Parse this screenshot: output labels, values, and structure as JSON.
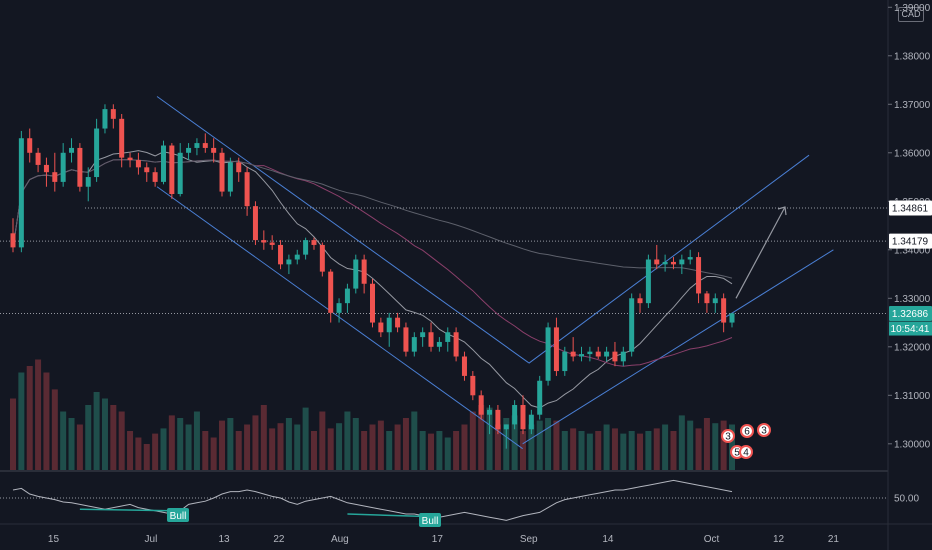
{
  "currency_label": "CAD",
  "chart_data": {
    "type": "candlestick",
    "y_axis": {
      "ticks": [
        "1.39000",
        "1.38000",
        "1.37000",
        "1.36000",
        "1.35000",
        "1.34000",
        "1.33000",
        "1.32000",
        "1.31000",
        "1.30000"
      ],
      "tick_values": [
        1.39,
        1.38,
        1.37,
        1.36,
        1.35,
        1.34,
        1.33,
        1.32,
        1.31,
        1.3
      ],
      "range": [
        1.2946,
        1.3915
      ]
    },
    "x_axis": {
      "ticks": [
        "15",
        "Jul",
        "13",
        "22",
        "Aug",
        "17",
        "Sep",
        "14",
        "Oct",
        "12",
        "21"
      ],
      "tick_positions_date": [
        "2020-06-15",
        "2020-07-01",
        "2020-07-13",
        "2020-07-22",
        "2020-08-01",
        "2020-08-17",
        "2020-09-01",
        "2020-09-14",
        "2020-10-01",
        "2020-10-12",
        "2020-10-21"
      ]
    },
    "price_labels": {
      "level_1": {
        "value": "1.34861",
        "color": "#ffffff"
      },
      "level_2": {
        "value": "1.34179",
        "color": "#ffffff"
      },
      "last_price": {
        "value": "1.32686",
        "color": "#26a69a"
      },
      "countdown": "10:54:41"
    },
    "horizontal_levels": [
      1.34861,
      1.34179,
      1.32686
    ],
    "candles": [
      [
        1.3434,
        1.3465,
        1.3395,
        1.3405
      ],
      [
        1.3405,
        1.3645,
        1.3395,
        1.363
      ],
      [
        1.363,
        1.365,
        1.358,
        1.36
      ],
      [
        1.36,
        1.361,
        1.356,
        1.3575
      ],
      [
        1.3575,
        1.359,
        1.353,
        1.356
      ],
      [
        1.356,
        1.36,
        1.352,
        1.354
      ],
      [
        1.354,
        1.362,
        1.353,
        1.36
      ],
      [
        1.36,
        1.363,
        1.358,
        1.361
      ],
      [
        1.361,
        1.362,
        1.352,
        1.353
      ],
      [
        1.353,
        1.357,
        1.35,
        1.355
      ],
      [
        1.355,
        1.367,
        1.354,
        1.365
      ],
      [
        1.365,
        1.37,
        1.364,
        1.369
      ],
      [
        1.369,
        1.37,
        1.365,
        1.367
      ],
      [
        1.367,
        1.368,
        1.357,
        1.359
      ],
      [
        1.359,
        1.36,
        1.357,
        1.3585
      ],
      [
        1.3585,
        1.36,
        1.3555,
        1.357
      ],
      [
        1.357,
        1.358,
        1.354,
        1.356
      ],
      [
        1.356,
        1.357,
        1.353,
        1.354
      ],
      [
        1.354,
        1.3625,
        1.3535,
        1.3615
      ],
      [
        1.3615,
        1.362,
        1.3505,
        1.3515
      ],
      [
        1.3515,
        1.362,
        1.351,
        1.36
      ],
      [
        1.36,
        1.362,
        1.3585,
        1.361
      ],
      [
        1.361,
        1.363,
        1.3595,
        1.362
      ],
      [
        1.362,
        1.364,
        1.36,
        1.361
      ],
      [
        1.361,
        1.363,
        1.358,
        1.36
      ],
      [
        1.36,
        1.361,
        1.351,
        1.352
      ],
      [
        1.352,
        1.359,
        1.351,
        1.358
      ],
      [
        1.358,
        1.359,
        1.354,
        1.356
      ],
      [
        1.356,
        1.357,
        1.347,
        1.349
      ],
      [
        1.349,
        1.35,
        1.341,
        1.342
      ],
      [
        1.342,
        1.344,
        1.34,
        1.3415
      ],
      [
        1.3415,
        1.343,
        1.34,
        1.341
      ],
      [
        1.341,
        1.342,
        1.336,
        1.337
      ],
      [
        1.337,
        1.339,
        1.335,
        1.338
      ],
      [
        1.338,
        1.34,
        1.337,
        1.339
      ],
      [
        1.339,
        1.3425,
        1.338,
        1.342
      ],
      [
        1.342,
        1.3425,
        1.34,
        1.341
      ],
      [
        1.341,
        1.3415,
        1.3345,
        1.3355
      ],
      [
        1.3355,
        1.336,
        1.325,
        1.327
      ],
      [
        1.327,
        1.33,
        1.325,
        1.329
      ],
      [
        1.329,
        1.333,
        1.327,
        1.332
      ],
      [
        1.332,
        1.339,
        1.331,
        1.338
      ],
      [
        1.338,
        1.339,
        1.331,
        1.333
      ],
      [
        1.333,
        1.334,
        1.324,
        1.325
      ],
      [
        1.325,
        1.326,
        1.322,
        1.323
      ],
      [
        1.323,
        1.327,
        1.32,
        1.326
      ],
      [
        1.326,
        1.327,
        1.323,
        1.324
      ],
      [
        1.324,
        1.325,
        1.318,
        1.319
      ],
      [
        1.319,
        1.323,
        1.318,
        1.322
      ],
      [
        1.322,
        1.324,
        1.32,
        1.323
      ],
      [
        1.323,
        1.325,
        1.319,
        1.32
      ],
      [
        1.32,
        1.322,
        1.319,
        1.321
      ],
      [
        1.321,
        1.324,
        1.319,
        1.323
      ],
      [
        1.323,
        1.324,
        1.317,
        1.318
      ],
      [
        1.318,
        1.319,
        1.313,
        1.314
      ],
      [
        1.314,
        1.315,
        1.309,
        1.31
      ],
      [
        1.31,
        1.311,
        1.305,
        1.306
      ],
      [
        1.306,
        1.308,
        1.302,
        1.307
      ],
      [
        1.307,
        1.308,
        1.302,
        1.303
      ],
      [
        1.303,
        1.304,
        1.299,
        1.304
      ],
      [
        1.304,
        1.309,
        1.303,
        1.308
      ],
      [
        1.308,
        1.31,
        1.302,
        1.303
      ],
      [
        1.303,
        1.307,
        1.302,
        1.306
      ],
      [
        1.306,
        1.314,
        1.305,
        1.313
      ],
      [
        1.313,
        1.325,
        1.312,
        1.324
      ],
      [
        1.324,
        1.326,
        1.314,
        1.315
      ],
      [
        1.315,
        1.32,
        1.314,
        1.319
      ],
      [
        1.319,
        1.322,
        1.317,
        1.318
      ],
      [
        1.318,
        1.32,
        1.317,
        1.3185
      ],
      [
        1.3185,
        1.32,
        1.317,
        1.319
      ],
      [
        1.319,
        1.32,
        1.3175,
        1.318
      ],
      [
        1.318,
        1.32,
        1.317,
        1.319
      ],
      [
        1.319,
        1.321,
        1.316,
        1.317
      ],
      [
        1.317,
        1.32,
        1.316,
        1.319
      ],
      [
        1.319,
        1.331,
        1.318,
        1.33
      ],
      [
        1.33,
        1.331,
        1.327,
        1.329
      ],
      [
        1.329,
        1.339,
        1.328,
        1.338
      ],
      [
        1.338,
        1.341,
        1.336,
        1.337
      ],
      [
        1.337,
        1.339,
        1.3355,
        1.3375
      ],
      [
        1.3375,
        1.3385,
        1.336,
        1.337
      ],
      [
        1.337,
        1.339,
        1.335,
        1.338
      ],
      [
        1.338,
        1.34,
        1.337,
        1.3385
      ],
      [
        1.3385,
        1.3395,
        1.329,
        1.331
      ],
      [
        1.331,
        1.3315,
        1.327,
        1.329
      ],
      [
        1.329,
        1.331,
        1.327,
        1.33
      ],
      [
        1.33,
        1.331,
        1.323,
        1.325
      ],
      [
        1.325,
        1.327,
        1.324,
        1.3269
      ]
    ],
    "volume_rel": [
      0.55,
      0.75,
      0.8,
      0.85,
      0.75,
      0.62,
      0.45,
      0.4,
      0.35,
      0.5,
      0.6,
      0.55,
      0.5,
      0.45,
      0.3,
      0.25,
      0.2,
      0.28,
      0.32,
      0.42,
      0.4,
      0.35,
      0.45,
      0.3,
      0.25,
      0.38,
      0.4,
      0.3,
      0.35,
      0.42,
      0.5,
      0.32,
      0.36,
      0.4,
      0.35,
      0.48,
      0.3,
      0.45,
      0.32,
      0.36,
      0.45,
      0.4,
      0.3,
      0.35,
      0.38,
      0.3,
      0.35,
      0.4,
      0.45,
      0.3,
      0.28,
      0.3,
      0.25,
      0.3,
      0.35,
      0.45,
      0.5,
      0.48,
      0.35,
      0.4,
      0.42,
      0.3,
      0.35,
      0.38,
      0.4,
      0.38,
      0.3,
      0.32,
      0.3,
      0.28,
      0.3,
      0.35,
      0.32,
      0.28,
      0.3,
      0.28,
      0.3,
      0.32,
      0.35,
      0.3,
      0.42,
      0.38,
      0.32,
      0.4,
      0.36,
      0.38,
      0.35
    ],
    "rsi": {
      "level": "50.00",
      "level_value": 50,
      "range": [
        20,
        80
      ],
      "values": [
        60,
        62,
        55,
        52,
        50,
        48,
        45,
        44,
        42,
        40,
        38,
        36,
        38,
        40,
        42,
        38,
        36,
        34,
        32,
        30,
        34,
        42,
        44,
        46,
        50,
        55,
        58,
        58,
        60,
        58,
        55,
        52,
        50,
        45,
        42,
        46,
        48,
        50,
        52,
        48,
        44,
        42,
        40,
        38,
        36,
        34,
        32,
        30,
        30,
        28,
        30,
        26,
        28,
        30,
        32,
        30,
        28,
        26,
        24,
        22,
        25,
        28,
        30,
        32,
        38,
        44,
        48,
        50,
        52,
        54,
        56,
        58,
        60,
        60,
        62,
        64,
        66,
        68,
        70,
        72,
        70,
        68,
        66,
        64,
        62,
        60,
        58
      ]
    },
    "annotations": [
      "Bull",
      "Bull"
    ],
    "event_markers": [
      "3",
      "6",
      "3",
      "5",
      "4"
    ]
  }
}
